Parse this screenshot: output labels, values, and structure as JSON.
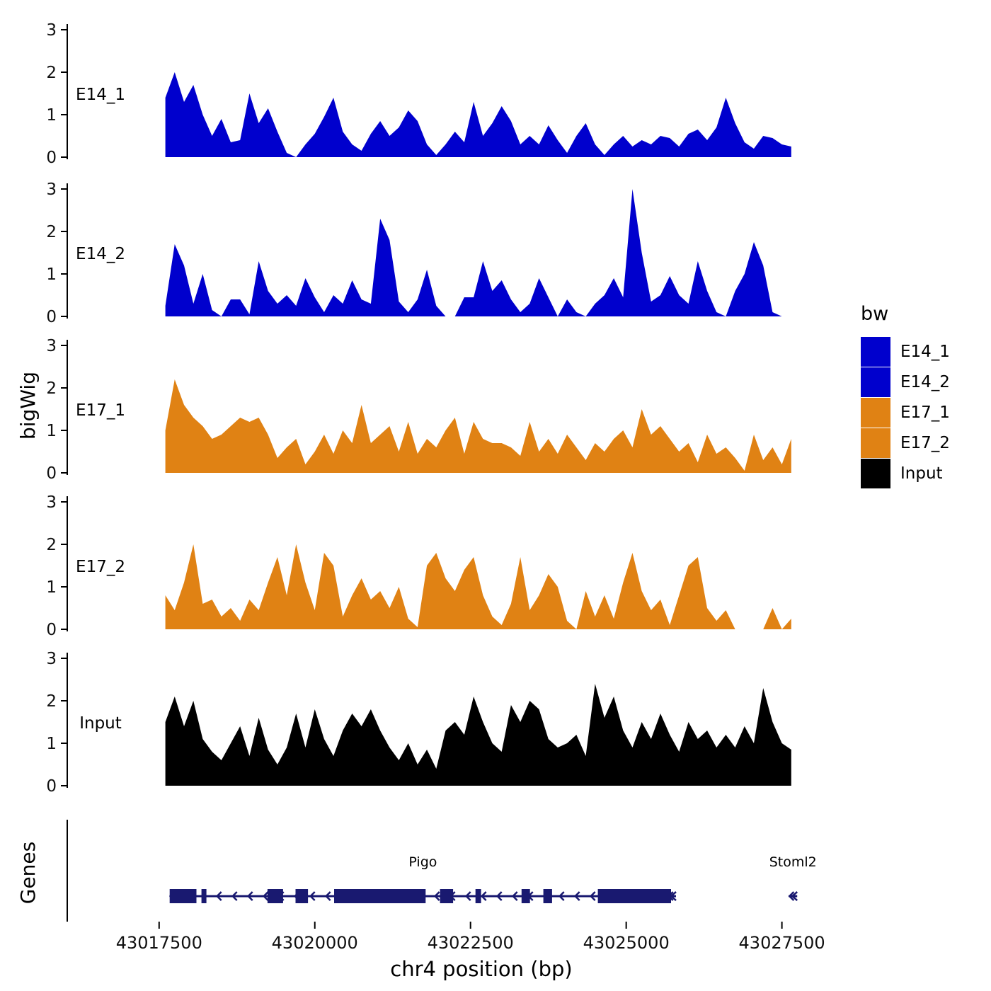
{
  "chart_data": {
    "type": "area",
    "title": "",
    "xlabel": "chr4 position (bp)",
    "ylabel": "bigWig",
    "x_domain": [
      43016025,
      43028300
    ],
    "x_ticks": [
      43017500,
      43020000,
      43022500,
      43025000,
      43027500
    ],
    "y_ticks": [
      0,
      1,
      2,
      3
    ],
    "y_domain": [
      0,
      3.1
    ],
    "grid": "off",
    "x_start": 43017600,
    "x_step": 150,
    "series": [
      {
        "name": "E14_1",
        "color": "#0000CD",
        "values": [
          1.4,
          2.0,
          1.3,
          1.7,
          1.0,
          0.5,
          0.9,
          0.35,
          0.4,
          1.5,
          0.8,
          1.15,
          0.6,
          0.1,
          0.0,
          0.3,
          0.55,
          0.95,
          1.4,
          0.6,
          0.3,
          0.15,
          0.55,
          0.85,
          0.5,
          0.7,
          1.1,
          0.85,
          0.3,
          0.05,
          0.3,
          0.6,
          0.35,
          1.3,
          0.5,
          0.8,
          1.2,
          0.85,
          0.3,
          0.5,
          0.3,
          0.75,
          0.4,
          0.1,
          0.5,
          0.8,
          0.3,
          0.05,
          0.3,
          0.5,
          0.25,
          0.4,
          0.3,
          0.5,
          0.45,
          0.25,
          0.55,
          0.65,
          0.4,
          0.7,
          1.4,
          0.8,
          0.35,
          0.2,
          0.5,
          0.45,
          0.3,
          0.25
        ]
      },
      {
        "name": "E14_2",
        "color": "#0000CD",
        "values": [
          0.25,
          1.7,
          1.2,
          0.3,
          1.0,
          0.15,
          0.0,
          0.4,
          0.4,
          0.05,
          1.3,
          0.6,
          0.3,
          0.5,
          0.25,
          0.9,
          0.45,
          0.1,
          0.5,
          0.3,
          0.85,
          0.4,
          0.3,
          2.3,
          1.8,
          0.35,
          0.1,
          0.4,
          1.1,
          0.25,
          0.0,
          0.0,
          0.45,
          0.45,
          1.3,
          0.6,
          0.85,
          0.4,
          0.1,
          0.3,
          0.9,
          0.45,
          0.0,
          0.4,
          0.1,
          0.0,
          0.3,
          0.5,
          0.9,
          0.45,
          3.0,
          1.5,
          0.35,
          0.5,
          0.95,
          0.5,
          0.3,
          1.3,
          0.6,
          0.1,
          0.0,
          0.6,
          1.0,
          1.75,
          1.2,
          0.1,
          0.0,
          0.0
        ]
      },
      {
        "name": "E17_1",
        "color": "#E08214",
        "values": [
          1.0,
          2.2,
          1.6,
          1.3,
          1.1,
          0.8,
          0.9,
          1.1,
          1.3,
          1.2,
          1.3,
          0.9,
          0.35,
          0.6,
          0.8,
          0.2,
          0.5,
          0.9,
          0.45,
          1.0,
          0.7,
          1.6,
          0.7,
          0.9,
          1.1,
          0.5,
          1.2,
          0.45,
          0.8,
          0.6,
          1.0,
          1.3,
          0.45,
          1.2,
          0.8,
          0.7,
          0.7,
          0.6,
          0.4,
          1.2,
          0.5,
          0.8,
          0.45,
          0.9,
          0.6,
          0.3,
          0.7,
          0.5,
          0.8,
          1.0,
          0.6,
          1.5,
          0.9,
          1.1,
          0.8,
          0.5,
          0.7,
          0.25,
          0.9,
          0.45,
          0.6,
          0.35,
          0.05,
          0.9,
          0.3,
          0.6,
          0.2,
          0.8
        ]
      },
      {
        "name": "E17_2",
        "color": "#E08214",
        "values": [
          0.8,
          0.45,
          1.1,
          2.0,
          0.6,
          0.7,
          0.3,
          0.5,
          0.2,
          0.7,
          0.45,
          1.1,
          1.7,
          0.8,
          2.0,
          1.1,
          0.45,
          1.8,
          1.5,
          0.3,
          0.8,
          1.2,
          0.7,
          0.9,
          0.5,
          1.0,
          0.25,
          0.05,
          1.5,
          1.8,
          1.2,
          0.9,
          1.4,
          1.7,
          0.8,
          0.3,
          0.1,
          0.6,
          1.7,
          0.45,
          0.8,
          1.3,
          1.0,
          0.2,
          0.0,
          0.9,
          0.3,
          0.8,
          0.25,
          1.1,
          1.8,
          0.9,
          0.45,
          0.7,
          0.1,
          0.8,
          1.5,
          1.7,
          0.5,
          0.2,
          0.45,
          0.0,
          0.0,
          0.0,
          0.0,
          0.5,
          0.0,
          0.25
        ]
      },
      {
        "name": "Input",
        "color": "#000000",
        "values": [
          1.5,
          2.1,
          1.4,
          2.0,
          1.1,
          0.8,
          0.6,
          1.0,
          1.4,
          0.7,
          1.6,
          0.85,
          0.5,
          0.9,
          1.7,
          0.9,
          1.8,
          1.1,
          0.7,
          1.3,
          1.7,
          1.4,
          1.8,
          1.3,
          0.9,
          0.6,
          1.0,
          0.5,
          0.85,
          0.4,
          1.3,
          1.5,
          1.2,
          2.1,
          1.5,
          1.0,
          0.8,
          1.9,
          1.5,
          2.0,
          1.8,
          1.1,
          0.9,
          1.0,
          1.2,
          0.7,
          2.4,
          1.6,
          2.1,
          1.3,
          0.9,
          1.5,
          1.1,
          1.7,
          1.2,
          0.8,
          1.5,
          1.1,
          1.3,
          0.9,
          1.2,
          0.9,
          1.4,
          1.0,
          2.3,
          1.5,
          1.0,
          0.85
        ]
      }
    ],
    "legend": {
      "title": "bw",
      "position": "right",
      "items": [
        {
          "label": "E14_1",
          "color": "#0000CD"
        },
        {
          "label": "E14_2",
          "color": "#0000CD"
        },
        {
          "label": "E17_1",
          "color": "#E08214"
        },
        {
          "label": "E17_2",
          "color": "#E08214"
        },
        {
          "label": "Input",
          "color": "#000000"
        }
      ]
    },
    "genes_panel": {
      "title": "Genes",
      "color": "#191970",
      "genes": [
        {
          "name": "Pigo",
          "strand": "-",
          "start": 43017670,
          "end": 43025800,
          "exons": [
            [
              43017670,
              43018100
            ],
            [
              43018180,
              43018260
            ],
            [
              43019240,
              43019490
            ],
            [
              43019690,
              43019890
            ],
            [
              43020310,
              43021780
            ],
            [
              43022010,
              43022220
            ],
            [
              43022580,
              43022670
            ],
            [
              43023320,
              43023455
            ],
            [
              43023670,
              43023810
            ],
            [
              43024545,
              43025720
            ]
          ]
        },
        {
          "name": "Stoml2",
          "strand": "-",
          "start": 43027610,
          "end": 43027745,
          "exons": []
        }
      ]
    }
  }
}
